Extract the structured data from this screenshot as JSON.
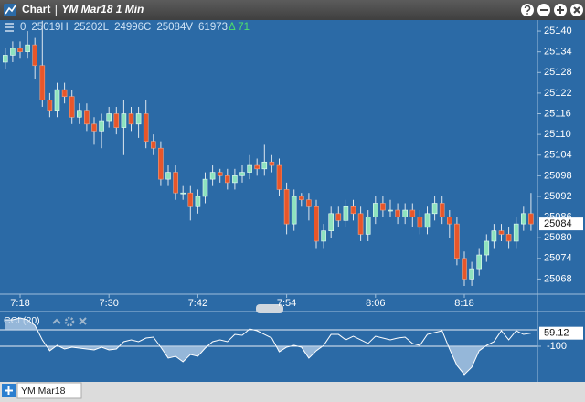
{
  "window": {
    "title": "Chart",
    "subtitle": "YM Mar18 1 Min"
  },
  "info": {
    "values": [
      "0",
      "25019H",
      "25202L",
      "24996C",
      "25084V",
      "61973"
    ],
    "change": "Δ 71"
  },
  "tab": "YM Mar18",
  "chart_data": [
    {
      "type": "candlestick",
      "categories": [
        null,
        null,
        "7:18",
        null,
        null,
        null,
        null,
        null,
        null,
        null,
        null,
        null,
        null,
        null,
        "7:30",
        null,
        null,
        null,
        null,
        null,
        null,
        null,
        null,
        null,
        null,
        null,
        "7:42",
        null,
        null,
        null,
        null,
        null,
        null,
        null,
        null,
        null,
        null,
        null,
        "7:54",
        null,
        null,
        null,
        null,
        null,
        null,
        null,
        null,
        null,
        null,
        null,
        "8:06",
        null,
        null,
        null,
        null,
        null,
        null,
        null,
        null,
        null,
        null,
        null,
        "8:18",
        null,
        null,
        null,
        null,
        null,
        null,
        null,
        null,
        null
      ],
      "open": [
        25131,
        25133,
        25135,
        25134,
        25136,
        25130,
        25120,
        25117,
        25123,
        25121,
        25115,
        25117,
        25113,
        25111,
        25114,
        25116,
        25112,
        25116,
        25113,
        25116,
        25108,
        25106,
        25097,
        25099,
        25093,
        25093,
        25089,
        25092,
        25097,
        25099,
        25098,
        25096,
        25098,
        25099,
        25101,
        25100,
        25102,
        25101,
        25094,
        25084,
        25092,
        25091,
        25089,
        25079,
        25082,
        25087,
        25085,
        25089,
        25087,
        25081,
        25086,
        25090,
        25088,
        25088,
        25086,
        25088,
        25086,
        25083,
        25087,
        25090,
        25086,
        25084,
        25074,
        25068,
        25071,
        25075,
        25079,
        25082,
        25081,
        25079,
        25084,
        25087
      ],
      "high": [
        25135,
        25137,
        25137,
        25140,
        25138,
        25143,
        25122,
        25125,
        25125,
        25123,
        25119,
        25119,
        25115,
        25116,
        25118,
        25118,
        25120,
        25118,
        25118,
        25120,
        25110,
        25108,
        25101,
        25101,
        25095,
        25095,
        25094,
        25099,
        25101,
        25100,
        25100,
        25100,
        25101,
        25104,
        25103,
        25107,
        25104,
        25103,
        25096,
        25094,
        25093,
        25093,
        25091,
        25084,
        25089,
        25089,
        25091,
        25091,
        25089,
        25088,
        25092,
        25092,
        25091,
        25090,
        25090,
        25090,
        25088,
        25089,
        25092,
        25092,
        25088,
        25086,
        25076,
        25073,
        25077,
        25081,
        25084,
        25084,
        25083,
        25086,
        25089,
        25093
      ],
      "low": [
        25129,
        25131,
        25132,
        25132,
        25126,
        25118,
        25115,
        25115,
        25119,
        25113,
        25113,
        25111,
        25107,
        25106,
        25112,
        25110,
        25104,
        25111,
        25109,
        25106,
        25104,
        25095,
        25095,
        25091,
        25091,
        25085,
        25087,
        25090,
        25095,
        25096,
        25094,
        25094,
        25096,
        25097,
        25098,
        25098,
        25099,
        25092,
        25081,
        25082,
        25089,
        25085,
        25077,
        25077,
        25080,
        25083,
        25083,
        25085,
        25079,
        25079,
        25084,
        25086,
        25086,
        25084,
        25084,
        25083,
        25081,
        25081,
        25085,
        25084,
        25080,
        25072,
        25066,
        25066,
        25069,
        25073,
        25077,
        25079,
        25077,
        25077,
        25082,
        25082
      ],
      "close": [
        25133,
        25135,
        25134,
        25136,
        25130,
        25120,
        25117,
        25123,
        25121,
        25115,
        25117,
        25113,
        25111,
        25114,
        25116,
        25112,
        25116,
        25113,
        25116,
        25108,
        25106,
        25097,
        25099,
        25093,
        25093,
        25089,
        25092,
        25097,
        25099,
        25098,
        25096,
        25098,
        25099,
        25101,
        25100,
        25102,
        25101,
        25094,
        25084,
        25092,
        25091,
        25089,
        25079,
        25082,
        25087,
        25085,
        25089,
        25087,
        25081,
        25086,
        25090,
        25088,
        25088,
        25086,
        25088,
        25086,
        25083,
        25087,
        25090,
        25086,
        25084,
        25074,
        25068,
        25071,
        25075,
        25079,
        25082,
        25081,
        25079,
        25084,
        25087,
        25084
      ],
      "up_color": "#8fe3bf",
      "down_color": "#e8562a",
      "wick_color": "#dde6ee",
      "ylim": [
        25063.6,
        25143.2
      ],
      "yticks": [
        25068,
        25074,
        25080,
        25086,
        25092,
        25098,
        25104,
        25110,
        25116,
        25122,
        25128,
        25134,
        25140
      ]
    },
    {
      "type": "line",
      "title": "CCI (20)",
      "color": "#ffffff",
      "fill_color": "#b9d2ea",
      "values": [
        222,
        222,
        244,
        222,
        155,
        -22,
        -155,
        -89,
        -133,
        -111,
        -122,
        -133,
        -144,
        -111,
        -144,
        -133,
        -44,
        -22,
        -44,
        0,
        11,
        -111,
        -244,
        -222,
        -289,
        -200,
        -222,
        -122,
        -44,
        -22,
        -44,
        44,
        33,
        111,
        89,
        44,
        0,
        -167,
        -111,
        -89,
        -111,
        -244,
        -155,
        -89,
        44,
        44,
        -22,
        22,
        -22,
        -66,
        22,
        0,
        -22,
        0,
        11,
        -66,
        -89,
        44,
        67,
        89,
        -133,
        -333,
        -444,
        -355,
        -155,
        -89,
        -44,
        89,
        -22,
        89,
        44,
        59.12
      ],
      "levels": [
        100,
        -100
      ],
      "ylim": [
        -500,
        277.8
      ],
      "yticks": [
        -100
      ]
    }
  ]
}
